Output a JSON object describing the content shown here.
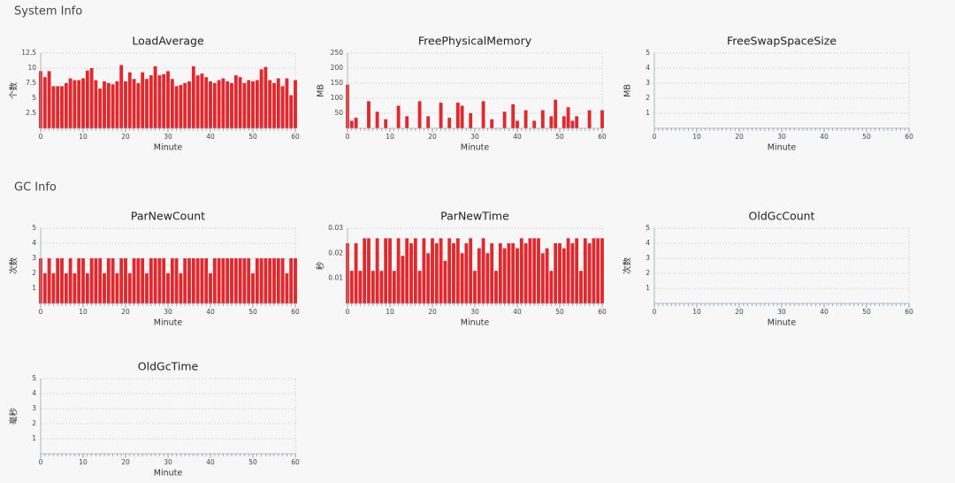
{
  "sections": [
    "System Info",
    "GC Info"
  ],
  "chart_data": [
    {
      "type": "bar",
      "title": "LoadAverage",
      "x_label": "Minute",
      "y_label": "个数",
      "color": "#e0282d",
      "grid": true,
      "xlim": [
        0,
        60
      ],
      "xticks": [
        0,
        10,
        20,
        30,
        40,
        50,
        60
      ],
      "ylim": [
        0,
        12.5
      ],
      "yticks": [
        2.5,
        5,
        7.5,
        10,
        12.5
      ],
      "x": [
        0,
        1,
        2,
        3,
        4,
        5,
        6,
        7,
        8,
        9,
        10,
        11,
        12,
        13,
        14,
        15,
        16,
        17,
        18,
        19,
        20,
        21,
        22,
        23,
        24,
        25,
        26,
        27,
        28,
        29,
        30,
        31,
        32,
        33,
        34,
        35,
        36,
        37,
        38,
        39,
        40,
        41,
        42,
        43,
        44,
        45,
        46,
        47,
        48,
        49,
        50,
        51,
        52,
        53,
        54,
        55,
        56,
        57,
        58,
        59,
        60
      ],
      "values": [
        9.5,
        8.5,
        9.5,
        7,
        7,
        7,
        7.5,
        8.3,
        8,
        8,
        8.3,
        9.6,
        10,
        8,
        6.6,
        7.8,
        7.5,
        7.3,
        7.8,
        10.5,
        7.8,
        9.3,
        8.2,
        7.5,
        9.3,
        8.2,
        8.8,
        10.3,
        8.8,
        9,
        9.5,
        8.2,
        7,
        7.2,
        7.5,
        7.8,
        10.3,
        8.8,
        9.1,
        8.5,
        7.8,
        7.5,
        8,
        8.3,
        7.8,
        7.5,
        8.8,
        8.5,
        7.5,
        8,
        7.8,
        8,
        9.8,
        10.2,
        8,
        7.5,
        8.3,
        7,
        8.3,
        5.5,
        8
      ]
    },
    {
      "type": "bar",
      "title": "FreePhysicalMemory",
      "x_label": "Minute",
      "y_label": "MB",
      "color": "#e0282d",
      "grid": true,
      "xlim": [
        0,
        60
      ],
      "xticks": [
        0,
        10,
        20,
        30,
        40,
        50,
        60
      ],
      "ylim": [
        0,
        250
      ],
      "yticks": [
        50,
        100,
        150,
        200,
        250
      ],
      "x": [
        0,
        1,
        2,
        3,
        4,
        5,
        6,
        7,
        8,
        9,
        10,
        11,
        12,
        13,
        14,
        15,
        16,
        17,
        18,
        19,
        20,
        21,
        22,
        23,
        24,
        25,
        26,
        27,
        28,
        29,
        30,
        31,
        32,
        33,
        34,
        35,
        36,
        37,
        38,
        39,
        40,
        41,
        42,
        43,
        44,
        45,
        46,
        47,
        48,
        49,
        50,
        51,
        52,
        53,
        54,
        55,
        56,
        57,
        58,
        59,
        60
      ],
      "values": [
        145,
        25,
        35,
        0,
        0,
        90,
        0,
        55,
        0,
        30,
        0,
        0,
        75,
        0,
        40,
        0,
        0,
        90,
        0,
        40,
        0,
        0,
        85,
        0,
        35,
        0,
        85,
        75,
        0,
        50,
        0,
        0,
        90,
        0,
        30,
        0,
        0,
        55,
        0,
        80,
        25,
        0,
        60,
        0,
        25,
        0,
        60,
        0,
        40,
        95,
        0,
        40,
        70,
        25,
        40,
        0,
        0,
        60,
        0,
        0,
        60
      ]
    },
    {
      "type": "bar",
      "title": "FreeSwapSpaceSize",
      "x_label": "Minute",
      "y_label": "MB",
      "color": "#e0282d",
      "grid": true,
      "xlim": [
        0,
        60
      ],
      "xticks": [
        0,
        10,
        20,
        30,
        40,
        50,
        60
      ],
      "ylim": [
        0,
        5
      ],
      "yticks": [
        1,
        2,
        3,
        4,
        5
      ],
      "x": [
        0,
        1,
        2,
        3,
        4,
        5,
        6,
        7,
        8,
        9,
        10,
        11,
        12,
        13,
        14,
        15,
        16,
        17,
        18,
        19,
        20,
        21,
        22,
        23,
        24,
        25,
        26,
        27,
        28,
        29,
        30,
        31,
        32,
        33,
        34,
        35,
        36,
        37,
        38,
        39,
        40,
        41,
        42,
        43,
        44,
        45,
        46,
        47,
        48,
        49,
        50,
        51,
        52,
        53,
        54,
        55,
        56,
        57,
        58,
        59,
        60
      ],
      "values": [
        0,
        0,
        0,
        0,
        0,
        0,
        0,
        0,
        0,
        0,
        0,
        0,
        0,
        0,
        0,
        0,
        0,
        0,
        0,
        0,
        0,
        0,
        0,
        0,
        0,
        0,
        0,
        0,
        0,
        0,
        0,
        0,
        0,
        0,
        0,
        0,
        0,
        0,
        0,
        0,
        0,
        0,
        0,
        0,
        0,
        0,
        0,
        0,
        0,
        0,
        0,
        0,
        0,
        0,
        0,
        0,
        0,
        0,
        0,
        0,
        0
      ]
    },
    {
      "type": "bar",
      "title": "ParNewCount",
      "x_label": "Minute",
      "y_label": "次数",
      "color": "#e0282d",
      "grid": true,
      "xlim": [
        0,
        60
      ],
      "xticks": [
        0,
        10,
        20,
        30,
        40,
        50,
        60
      ],
      "ylim": [
        0,
        5
      ],
      "yticks": [
        1,
        2,
        3,
        4,
        5
      ],
      "x": [
        0,
        1,
        2,
        3,
        4,
        5,
        6,
        7,
        8,
        9,
        10,
        11,
        12,
        13,
        14,
        15,
        16,
        17,
        18,
        19,
        20,
        21,
        22,
        23,
        24,
        25,
        26,
        27,
        28,
        29,
        30,
        31,
        32,
        33,
        34,
        35,
        36,
        37,
        38,
        39,
        40,
        41,
        42,
        43,
        44,
        45,
        46,
        47,
        48,
        49,
        50,
        51,
        52,
        53,
        54,
        55,
        56,
        57,
        58,
        59,
        60
      ],
      "values": [
        3,
        2,
        3,
        2,
        3,
        3,
        2,
        3,
        2,
        3,
        3,
        2,
        3,
        3,
        3,
        2,
        3,
        3,
        2,
        3,
        3,
        2,
        3,
        3,
        3,
        2,
        3,
        3,
        3,
        3,
        2,
        3,
        3,
        2,
        3,
        3,
        3,
        3,
        3,
        3,
        2,
        3,
        3,
        3,
        3,
        3,
        3,
        3,
        3,
        3,
        2,
        3,
        3,
        3,
        3,
        3,
        3,
        3,
        2,
        3,
        3
      ]
    },
    {
      "type": "bar",
      "title": "ParNewTime",
      "x_label": "Minute",
      "y_label": "秒",
      "color": "#e0282d",
      "grid": true,
      "xlim": [
        0,
        60
      ],
      "xticks": [
        0,
        10,
        20,
        30,
        40,
        50,
        60
      ],
      "ylim": [
        0,
        0.03
      ],
      "yticks": [
        0.01,
        0.02,
        0.03
      ],
      "x": [
        0,
        1,
        2,
        3,
        4,
        5,
        6,
        7,
        8,
        9,
        10,
        11,
        12,
        13,
        14,
        15,
        16,
        17,
        18,
        19,
        20,
        21,
        22,
        23,
        24,
        25,
        26,
        27,
        28,
        29,
        30,
        31,
        32,
        33,
        34,
        35,
        36,
        37,
        38,
        39,
        40,
        41,
        42,
        43,
        44,
        45,
        46,
        47,
        48,
        49,
        50,
        51,
        52,
        53,
        54,
        55,
        56,
        57,
        58,
        59,
        60
      ],
      "values": [
        0.024,
        0.013,
        0.024,
        0.013,
        0.026,
        0.026,
        0.013,
        0.026,
        0.013,
        0.026,
        0.026,
        0.013,
        0.026,
        0.019,
        0.026,
        0.024,
        0.026,
        0.013,
        0.026,
        0.02,
        0.026,
        0.024,
        0.026,
        0.017,
        0.026,
        0.024,
        0.026,
        0.02,
        0.024,
        0.026,
        0.013,
        0.022,
        0.026,
        0.02,
        0.024,
        0.013,
        0.024,
        0.022,
        0.024,
        0.024,
        0.022,
        0.026,
        0.024,
        0.026,
        0.026,
        0.026,
        0.02,
        0.022,
        0.013,
        0.024,
        0.024,
        0.022,
        0.026,
        0.024,
        0.026,
        0.013,
        0.026,
        0.024,
        0.026,
        0.026,
        0.026
      ]
    },
    {
      "type": "bar",
      "title": "OldGcCount",
      "x_label": "Minute",
      "y_label": "次数",
      "color": "#e0282d",
      "grid": true,
      "xlim": [
        0,
        60
      ],
      "xticks": [
        0,
        10,
        20,
        30,
        40,
        50,
        60
      ],
      "ylim": [
        0,
        5
      ],
      "yticks": [
        1,
        2,
        3,
        4,
        5
      ],
      "x": [
        0,
        1,
        2,
        3,
        4,
        5,
        6,
        7,
        8,
        9,
        10,
        11,
        12,
        13,
        14,
        15,
        16,
        17,
        18,
        19,
        20,
        21,
        22,
        23,
        24,
        25,
        26,
        27,
        28,
        29,
        30,
        31,
        32,
        33,
        34,
        35,
        36,
        37,
        38,
        39,
        40,
        41,
        42,
        43,
        44,
        45,
        46,
        47,
        48,
        49,
        50,
        51,
        52,
        53,
        54,
        55,
        56,
        57,
        58,
        59,
        60
      ],
      "values": [
        0,
        0,
        0,
        0,
        0,
        0,
        0,
        0,
        0,
        0,
        0,
        0,
        0,
        0,
        0,
        0,
        0,
        0,
        0,
        0,
        0,
        0,
        0,
        0,
        0,
        0,
        0,
        0,
        0,
        0,
        0,
        0,
        0,
        0,
        0,
        0,
        0,
        0,
        0,
        0,
        0,
        0,
        0,
        0,
        0,
        0,
        0,
        0,
        0,
        0,
        0,
        0,
        0,
        0,
        0,
        0,
        0,
        0,
        0,
        0,
        0
      ]
    },
    {
      "type": "bar",
      "title": "OldGcTime",
      "x_label": "Minute",
      "y_label": "毫秒",
      "color": "#e0282d",
      "grid": true,
      "xlim": [
        0,
        60
      ],
      "xticks": [
        0,
        10,
        20,
        30,
        40,
        50,
        60
      ],
      "ylim": [
        0,
        5
      ],
      "yticks": [
        1,
        2,
        3,
        4,
        5
      ],
      "x": [
        0,
        1,
        2,
        3,
        4,
        5,
        6,
        7,
        8,
        9,
        10,
        11,
        12,
        13,
        14,
        15,
        16,
        17,
        18,
        19,
        20,
        21,
        22,
        23,
        24,
        25,
        26,
        27,
        28,
        29,
        30,
        31,
        32,
        33,
        34,
        35,
        36,
        37,
        38,
        39,
        40,
        41,
        42,
        43,
        44,
        45,
        46,
        47,
        48,
        49,
        50,
        51,
        52,
        53,
        54,
        55,
        56,
        57,
        58,
        59,
        60
      ],
      "values": [
        0,
        0,
        0,
        0,
        0,
        0,
        0,
        0,
        0,
        0,
        0,
        0,
        0,
        0,
        0,
        0,
        0,
        0,
        0,
        0,
        0,
        0,
        0,
        0,
        0,
        0,
        0,
        0,
        0,
        0,
        0,
        0,
        0,
        0,
        0,
        0,
        0,
        0,
        0,
        0,
        0,
        0,
        0,
        0,
        0,
        0,
        0,
        0,
        0,
        0,
        0,
        0,
        0,
        0,
        0,
        0,
        0,
        0,
        0,
        0,
        0
      ]
    }
  ]
}
